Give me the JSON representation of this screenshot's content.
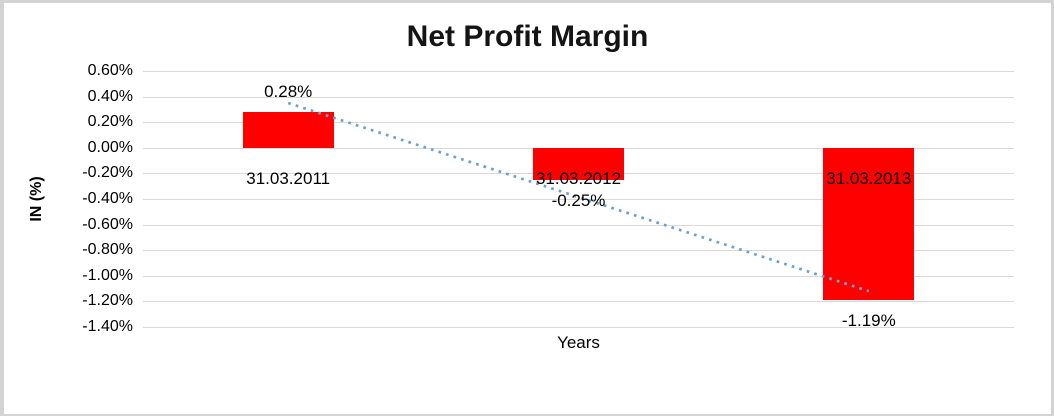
{
  "chart_data": {
    "type": "bar",
    "title": "Net Profit Margin",
    "categories": [
      "31.03.2011",
      "31.03.2012",
      "31.03.2013"
    ],
    "values": [
      0.28,
      -0.25,
      -1.19
    ],
    "data_labels": [
      "0.28%",
      "-0.25%",
      "-1.19%"
    ],
    "xlabel": "Years",
    "ylabel": "IN (%)",
    "ylim": [
      -1.4,
      0.6
    ],
    "ytick_values": [
      0.6,
      0.4,
      0.2,
      0.0,
      -0.2,
      -0.4,
      -0.6,
      -0.8,
      -1.0,
      -1.2,
      -1.4
    ],
    "ytick_labels": [
      "0.60%",
      "0.40%",
      "0.20%",
      "0.00%",
      "-0.20%",
      "-0.40%",
      "-0.60%",
      "-0.80%",
      "-1.00%",
      "-1.20%",
      "-1.40%"
    ],
    "grid": true,
    "legend": "none",
    "bar_color": "#ff0000",
    "grid_color": "#d9d9d9",
    "text_color": "#000000",
    "title_color": "#141414",
    "trendline": {
      "type": "linear",
      "style": "dotted",
      "color": "#6ea0cd",
      "start_value": 0.35,
      "end_value": -1.12
    }
  }
}
